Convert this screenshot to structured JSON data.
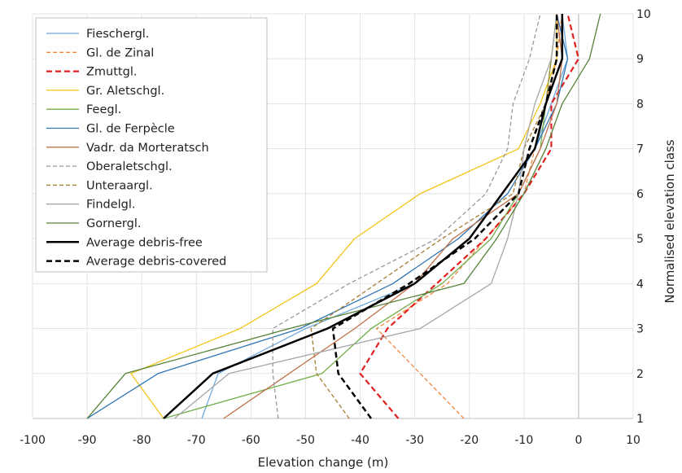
{
  "chart_data": {
    "type": "line",
    "title": "",
    "xlabel": "Elevation change (m)",
    "ylabel": "Normalised elevation class",
    "xlim": [
      -100,
      10
    ],
    "ylim": [
      1,
      10
    ],
    "x_ticks": [
      -100,
      -90,
      -80,
      -70,
      -60,
      -50,
      -40,
      -30,
      -20,
      -10,
      0,
      10
    ],
    "y_ticks": [
      1,
      2,
      3,
      4,
      5,
      6,
      7,
      8,
      9,
      10
    ],
    "grid": true,
    "legend_position": "top-left",
    "y": [
      1,
      2,
      3,
      4,
      5,
      6,
      7,
      8,
      9,
      10
    ],
    "series": [
      {
        "name": "Fieschergl.",
        "color": "#6fa8dc",
        "dash": "solid",
        "width": 1.3,
        "x": [
          -69,
          -66,
          -50,
          -30,
          -20,
          -14,
          -8,
          -5,
          -2,
          -3
        ]
      },
      {
        "name": "Gl. de Zinal",
        "color": "#f0883e",
        "dash": "dashed",
        "width": 1.3,
        "x": [
          -21,
          -29,
          -37,
          -24,
          -17,
          -10,
          -8,
          -6,
          -4,
          -3
        ]
      },
      {
        "name": "Zmuttgl.",
        "color": "#e02020",
        "dash": "dashed",
        "width": 2.2,
        "x": [
          -33,
          -40,
          -35,
          -26,
          -17,
          -10,
          -5,
          -5,
          0,
          -2
        ]
      },
      {
        "name": "Gr. Aletschgl.",
        "color": "#f2c418",
        "dash": "solid",
        "width": 1.3,
        "x": [
          -76,
          -82,
          -62,
          -48,
          -41,
          -29,
          -11,
          -7,
          -4,
          -4
        ]
      },
      {
        "name": "Feegl.",
        "color": "#70ad47",
        "dash": "solid",
        "width": 1.3,
        "x": [
          -76,
          -47,
          -38,
          -25,
          -16,
          -11,
          -7,
          -6,
          -5,
          -4
        ]
      },
      {
        "name": "Gl. de Ferpècle",
        "color": "#2e75b6",
        "dash": "solid",
        "width": 1.3,
        "x": [
          -90,
          -77,
          -51,
          -34,
          -22,
          -13,
          -8,
          -4,
          -2,
          -4
        ]
      },
      {
        "name": "Vadr. da Morteratsch",
        "color": "#c0704a",
        "dash": "solid",
        "width": 1.3,
        "x": [
          -65,
          -53,
          -41,
          -30,
          -23,
          -11,
          -7,
          -4,
          -3,
          -4
        ]
      },
      {
        "name": "Oberaletschgl.",
        "color": "#999999",
        "dash": "dashed",
        "width": 1.3,
        "x": [
          -55,
          -56,
          -56,
          -42,
          -26,
          -17,
          -13,
          -12,
          -9,
          -7
        ]
      },
      {
        "name": "Unteraargl.",
        "color": "#a67c30",
        "dash": "dashed",
        "width": 1.3,
        "x": [
          -42,
          -48,
          -49,
          -37,
          -25,
          -12,
          -10,
          -6,
          -5,
          -4
        ]
      },
      {
        "name": "Findelgl.",
        "color": "#a6a6a6",
        "dash": "solid",
        "width": 1.3,
        "x": [
          -74,
          -64,
          -29,
          -16,
          -13,
          -11,
          -10,
          -8,
          -5,
          -4
        ]
      },
      {
        "name": "Gornergl.",
        "color": "#548235",
        "dash": "solid",
        "width": 1.3,
        "x": [
          -90,
          -83,
          -53,
          -21,
          -15,
          -10,
          -6,
          -3,
          2,
          4
        ]
      },
      {
        "name": "Average debris-free",
        "color": "#000000",
        "dash": "solid",
        "width": 2.5,
        "x": [
          -76,
          -67,
          -46,
          -30,
          -20,
          -14,
          -8,
          -6,
          -3,
          -3
        ]
      },
      {
        "name": "Average debris-covered",
        "color": "#000000",
        "dash": "dashed",
        "width": 2.5,
        "x": [
          -38,
          -44,
          -45,
          -31,
          -19,
          -11,
          -9,
          -6,
          -4,
          -4
        ]
      }
    ]
  }
}
